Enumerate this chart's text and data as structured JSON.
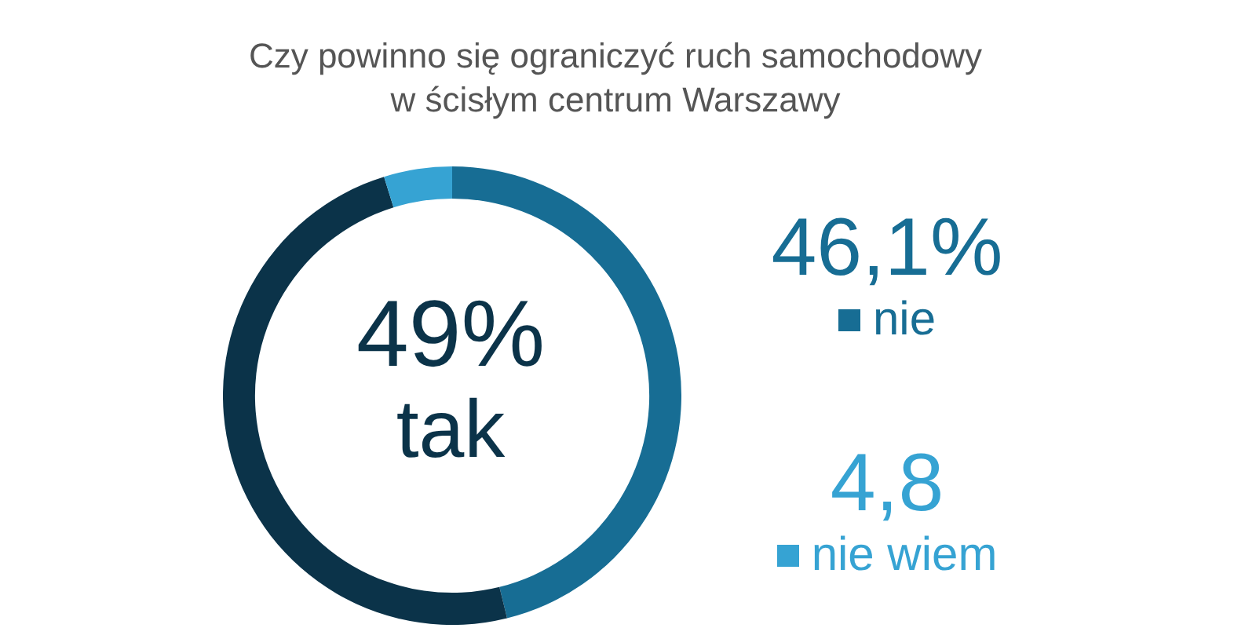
{
  "chart_data": {
    "type": "donut",
    "title": "Czy powinno się ograniczyć ruch samochodowy",
    "subtitle": "w ścisłym centrum Warszawy",
    "categories": [
      "nie",
      "tak",
      "nie wiem"
    ],
    "values": [
      46.1,
      49,
      4.8
    ],
    "value_labels": [
      "46,1%",
      "49%",
      "4,8"
    ],
    "colors": [
      "#176d94",
      "#0b3349",
      "#36a3d3"
    ],
    "legend": "right"
  }
}
